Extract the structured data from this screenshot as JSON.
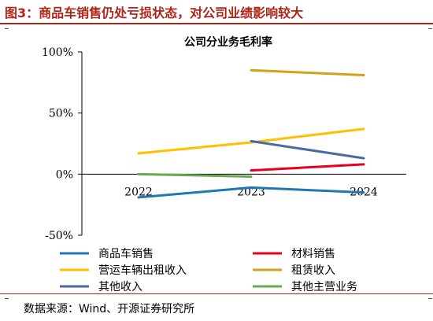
{
  "figure": {
    "title": "图3：商品车销售仍处亏损状态，对公司业绩影响较大",
    "source": "数据来源：Wind、开源证券研究所",
    "accent": "#b02418"
  },
  "chart_data": {
    "type": "line",
    "title": "公司分业务毛利率",
    "categories": [
      "2022",
      "2023",
      "2024"
    ],
    "y_tick_labels": [
      "100%",
      "50%",
      "0%",
      "-50%"
    ],
    "ylim": [
      -50,
      100
    ],
    "unit": "%",
    "grid": false,
    "legend_position": "bottom",
    "series": [
      {
        "name": "商品车销售",
        "color": "#1f77b4",
        "values": [
          -19,
          -11,
          -15
        ]
      },
      {
        "name": "材料销售",
        "color": "#e8001c",
        "values": [
          null,
          3,
          8
        ]
      },
      {
        "name": "营运车辆出租收入",
        "color": "#ffc000",
        "values": [
          17,
          26,
          37
        ]
      },
      {
        "name": "租赁收入",
        "color": "#d4a017",
        "values": [
          null,
          85,
          81
        ]
      },
      {
        "name": "其他收入",
        "color": "#4a6aa5",
        "values": [
          null,
          27,
          13
        ]
      },
      {
        "name": "其他主营业务",
        "color": "#6aa84f",
        "values": [
          0,
          -2,
          null
        ]
      }
    ]
  }
}
